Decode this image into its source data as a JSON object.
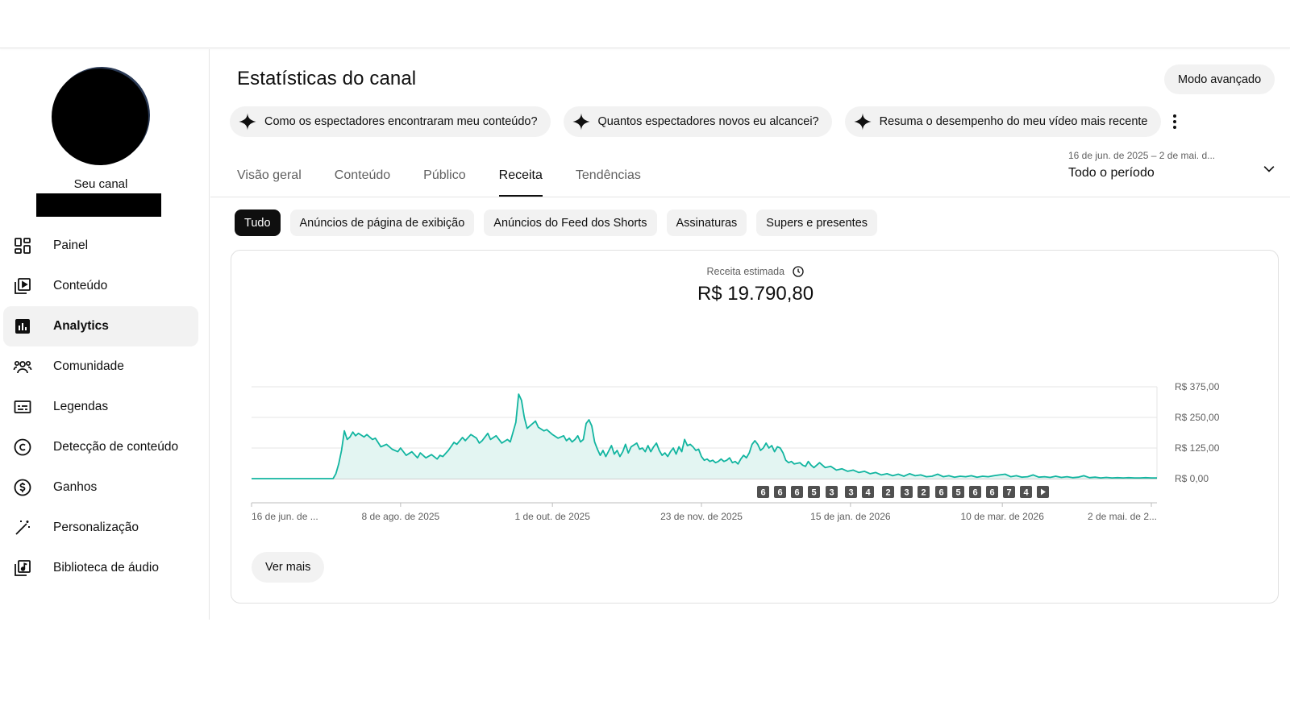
{
  "sidebar": {
    "channel_label": "Seu canal",
    "items": [
      {
        "label": "Painel",
        "icon": "dashboard-icon"
      },
      {
        "label": "Conteúdo",
        "icon": "content-icon"
      },
      {
        "label": "Analytics",
        "icon": "analytics-icon",
        "active": true
      },
      {
        "label": "Comunidade",
        "icon": "community-icon"
      },
      {
        "label": "Legendas",
        "icon": "subtitles-icon"
      },
      {
        "label": "Detecção de conteúdo",
        "icon": "copyright-icon"
      },
      {
        "label": "Ganhos",
        "icon": "earnings-icon"
      },
      {
        "label": "Personalização",
        "icon": "magic-wand-icon"
      },
      {
        "label": "Biblioteca de áudio",
        "icon": "audio-library-icon"
      }
    ]
  },
  "header": {
    "title": "Estatísticas do canal",
    "advanced_mode": "Modo avançado"
  },
  "suggestions": [
    "Como os espectadores encontraram meu conteúdo?",
    "Quantos espectadores novos eu alcancei?",
    "Resuma o desempenho do meu vídeo mais recente"
  ],
  "tabs": [
    "Visão geral",
    "Conteúdo",
    "Público",
    "Receita",
    "Tendências"
  ],
  "active_tab": "Receita",
  "date_range": {
    "range": "16 de jun. de 2025 – 2 de mai. d...",
    "period": "Todo o período"
  },
  "filters": [
    "Tudo",
    "Anúncios de página de exibição",
    "Anúncios do Feed dos Shorts",
    "Assinaturas",
    "Supers e presentes"
  ],
  "active_filter": "Tudo",
  "metric": {
    "label": "Receita estimada",
    "value": "R$ 19.790,80"
  },
  "see_more": "Ver mais",
  "colors": {
    "accent": "#12b5a0",
    "fill": "#e3f5f2",
    "active_chip": "#0f0f0f",
    "chip_bg": "#f2f2f2"
  },
  "chart_data": {
    "type": "area",
    "ylabel": "",
    "ylim": [
      0,
      375
    ],
    "y_ticks": [
      "R$ 375,00",
      "R$ 250,00",
      "R$ 125,00",
      "R$ 0,00"
    ],
    "y_tick_values": [
      375,
      250,
      125,
      0
    ],
    "x_tick_labels": [
      "16 de jun. de ...",
      "8 de ago. de 2025",
      "1 de out. de 2025",
      "23 de nov. de 2025",
      "15 de jan. de 2026",
      "10 de mar. de 2026",
      "2 de mai. de 2..."
    ],
    "x_tick_days": [
      0,
      53,
      107,
      160,
      213,
      267,
      320
    ],
    "video_markers": [
      "6",
      "6",
      "6",
      "5",
      "3",
      "3",
      "4",
      "2",
      "3",
      "2",
      "6",
      "5",
      "6",
      "6",
      "7",
      "4"
    ],
    "series": [
      {
        "values": [
          {
            "x": 0,
            "y": 0
          },
          {
            "x": 29,
            "y": 0
          },
          {
            "x": 30,
            "y": 20
          },
          {
            "x": 31,
            "y": 60
          },
          {
            "x": 32,
            "y": 115
          },
          {
            "x": 33,
            "y": 195
          },
          {
            "x": 34,
            "y": 160
          },
          {
            "x": 35,
            "y": 170
          },
          {
            "x": 36,
            "y": 190
          },
          {
            "x": 37,
            "y": 175
          },
          {
            "x": 38,
            "y": 185
          },
          {
            "x": 40,
            "y": 170
          },
          {
            "x": 41,
            "y": 180
          },
          {
            "x": 43,
            "y": 160
          },
          {
            "x": 44,
            "y": 165
          },
          {
            "x": 46,
            "y": 130
          },
          {
            "x": 48,
            "y": 140
          },
          {
            "x": 50,
            "y": 120
          },
          {
            "x": 52,
            "y": 110
          },
          {
            "x": 53,
            "y": 125
          },
          {
            "x": 55,
            "y": 95
          },
          {
            "x": 57,
            "y": 110
          },
          {
            "x": 59,
            "y": 85
          },
          {
            "x": 60,
            "y": 105
          },
          {
            "x": 62,
            "y": 85
          },
          {
            "x": 64,
            "y": 98
          },
          {
            "x": 66,
            "y": 80
          },
          {
            "x": 67,
            "y": 95
          },
          {
            "x": 68,
            "y": 90
          },
          {
            "x": 70,
            "y": 115
          },
          {
            "x": 72,
            "y": 148
          },
          {
            "x": 73,
            "y": 140
          },
          {
            "x": 75,
            "y": 168
          },
          {
            "x": 76,
            "y": 155
          },
          {
            "x": 78,
            "y": 180
          },
          {
            "x": 80,
            "y": 165
          },
          {
            "x": 81,
            "y": 145
          },
          {
            "x": 82,
            "y": 155
          },
          {
            "x": 84,
            "y": 185
          },
          {
            "x": 85,
            "y": 160
          },
          {
            "x": 87,
            "y": 175
          },
          {
            "x": 89,
            "y": 145
          },
          {
            "x": 91,
            "y": 160
          },
          {
            "x": 92,
            "y": 150
          },
          {
            "x": 94,
            "y": 230
          },
          {
            "x": 95,
            "y": 345
          },
          {
            "x": 96,
            "y": 320
          },
          {
            "x": 97,
            "y": 250
          },
          {
            "x": 98,
            "y": 205
          },
          {
            "x": 99,
            "y": 215
          },
          {
            "x": 101,
            "y": 235
          },
          {
            "x": 102,
            "y": 210
          },
          {
            "x": 104,
            "y": 195
          },
          {
            "x": 105,
            "y": 200
          },
          {
            "x": 107,
            "y": 180
          },
          {
            "x": 109,
            "y": 165
          },
          {
            "x": 111,
            "y": 175
          },
          {
            "x": 112,
            "y": 155
          },
          {
            "x": 113,
            "y": 165
          },
          {
            "x": 114,
            "y": 150
          },
          {
            "x": 115,
            "y": 160
          },
          {
            "x": 116,
            "y": 175
          },
          {
            "x": 117,
            "y": 150
          },
          {
            "x": 118,
            "y": 160
          },
          {
            "x": 119,
            "y": 225
          },
          {
            "x": 120,
            "y": 240
          },
          {
            "x": 121,
            "y": 215
          },
          {
            "x": 122,
            "y": 150
          },
          {
            "x": 123,
            "y": 120
          },
          {
            "x": 124,
            "y": 95
          },
          {
            "x": 125,
            "y": 115
          },
          {
            "x": 126,
            "y": 90
          },
          {
            "x": 128,
            "y": 135
          },
          {
            "x": 129,
            "y": 100
          },
          {
            "x": 130,
            "y": 115
          },
          {
            "x": 131,
            "y": 90
          },
          {
            "x": 132,
            "y": 110
          },
          {
            "x": 133,
            "y": 140
          },
          {
            "x": 134,
            "y": 105
          },
          {
            "x": 135,
            "y": 130
          },
          {
            "x": 137,
            "y": 145
          },
          {
            "x": 138,
            "y": 120
          },
          {
            "x": 139,
            "y": 125
          },
          {
            "x": 140,
            "y": 110
          },
          {
            "x": 141,
            "y": 135
          },
          {
            "x": 142,
            "y": 110
          },
          {
            "x": 143,
            "y": 130
          },
          {
            "x": 144,
            "y": 145
          },
          {
            "x": 145,
            "y": 115
          },
          {
            "x": 146,
            "y": 95
          },
          {
            "x": 147,
            "y": 105
          },
          {
            "x": 148,
            "y": 90
          },
          {
            "x": 149,
            "y": 110
          },
          {
            "x": 150,
            "y": 125
          },
          {
            "x": 151,
            "y": 100
          },
          {
            "x": 152,
            "y": 130
          },
          {
            "x": 153,
            "y": 110
          },
          {
            "x": 154,
            "y": 160
          },
          {
            "x": 155,
            "y": 135
          },
          {
            "x": 156,
            "y": 140
          },
          {
            "x": 157,
            "y": 130
          },
          {
            "x": 158,
            "y": 115
          },
          {
            "x": 159,
            "y": 120
          },
          {
            "x": 160,
            "y": 90
          },
          {
            "x": 161,
            "y": 75
          },
          {
            "x": 162,
            "y": 80
          },
          {
            "x": 163,
            "y": 70
          },
          {
            "x": 164,
            "y": 75
          },
          {
            "x": 165,
            "y": 65
          },
          {
            "x": 166,
            "y": 70
          },
          {
            "x": 167,
            "y": 80
          },
          {
            "x": 168,
            "y": 70
          },
          {
            "x": 169,
            "y": 75
          },
          {
            "x": 170,
            "y": 85
          },
          {
            "x": 171,
            "y": 65
          },
          {
            "x": 172,
            "y": 70
          },
          {
            "x": 173,
            "y": 60
          },
          {
            "x": 174,
            "y": 80
          },
          {
            "x": 175,
            "y": 95
          },
          {
            "x": 176,
            "y": 85
          },
          {
            "x": 177,
            "y": 105
          },
          {
            "x": 178,
            "y": 140
          },
          {
            "x": 179,
            "y": 155
          },
          {
            "x": 180,
            "y": 140
          },
          {
            "x": 181,
            "y": 115
          },
          {
            "x": 182,
            "y": 125
          },
          {
            "x": 183,
            "y": 145
          },
          {
            "x": 184,
            "y": 125
          },
          {
            "x": 185,
            "y": 135
          },
          {
            "x": 186,
            "y": 110
          },
          {
            "x": 187,
            "y": 130
          },
          {
            "x": 188,
            "y": 125
          },
          {
            "x": 189,
            "y": 105
          },
          {
            "x": 190,
            "y": 75
          },
          {
            "x": 191,
            "y": 65
          },
          {
            "x": 192,
            "y": 70
          },
          {
            "x": 193,
            "y": 60
          },
          {
            "x": 195,
            "y": 65
          },
          {
            "x": 196,
            "y": 55
          },
          {
            "x": 197,
            "y": 50
          },
          {
            "x": 198,
            "y": 70
          },
          {
            "x": 199,
            "y": 55
          },
          {
            "x": 200,
            "y": 45
          },
          {
            "x": 202,
            "y": 65
          },
          {
            "x": 204,
            "y": 45
          },
          {
            "x": 206,
            "y": 50
          },
          {
            "x": 208,
            "y": 35
          },
          {
            "x": 210,
            "y": 40
          },
          {
            "x": 212,
            "y": 30
          },
          {
            "x": 214,
            "y": 35
          },
          {
            "x": 216,
            "y": 25
          },
          {
            "x": 218,
            "y": 30
          },
          {
            "x": 220,
            "y": 20
          },
          {
            "x": 222,
            "y": 25
          },
          {
            "x": 224,
            "y": 15
          },
          {
            "x": 226,
            "y": 20
          },
          {
            "x": 228,
            "y": 12
          },
          {
            "x": 230,
            "y": 18
          },
          {
            "x": 232,
            "y": 10
          },
          {
            "x": 234,
            "y": 20
          },
          {
            "x": 236,
            "y": 12
          },
          {
            "x": 238,
            "y": 15
          },
          {
            "x": 240,
            "y": 8
          },
          {
            "x": 242,
            "y": 10
          },
          {
            "x": 244,
            "y": 18
          },
          {
            "x": 246,
            "y": 8
          },
          {
            "x": 248,
            "y": 12
          },
          {
            "x": 250,
            "y": 6
          },
          {
            "x": 252,
            "y": 10
          },
          {
            "x": 254,
            "y": 8
          },
          {
            "x": 256,
            "y": 12
          },
          {
            "x": 258,
            "y": 6
          },
          {
            "x": 260,
            "y": 10
          },
          {
            "x": 262,
            "y": 8
          },
          {
            "x": 264,
            "y": 12
          },
          {
            "x": 266,
            "y": 15
          },
          {
            "x": 268,
            "y": 18
          },
          {
            "x": 270,
            "y": 8
          },
          {
            "x": 272,
            "y": 12
          },
          {
            "x": 274,
            "y": 6
          },
          {
            "x": 276,
            "y": 8
          },
          {
            "x": 278,
            "y": 15
          },
          {
            "x": 280,
            "y": 6
          },
          {
            "x": 282,
            "y": 8
          },
          {
            "x": 284,
            "y": 5
          },
          {
            "x": 286,
            "y": 10
          },
          {
            "x": 288,
            "y": 5
          },
          {
            "x": 290,
            "y": 8
          },
          {
            "x": 292,
            "y": 4
          },
          {
            "x": 294,
            "y": 6
          },
          {
            "x": 296,
            "y": 12
          },
          {
            "x": 298,
            "y": 4
          },
          {
            "x": 300,
            "y": 6
          },
          {
            "x": 302,
            "y": 3
          },
          {
            "x": 304,
            "y": 5
          },
          {
            "x": 306,
            "y": 3
          },
          {
            "x": 308,
            "y": 4
          },
          {
            "x": 310,
            "y": 3
          },
          {
            "x": 312,
            "y": 4
          },
          {
            "x": 314,
            "y": 3
          },
          {
            "x": 316,
            "y": 3
          },
          {
            "x": 318,
            "y": 4
          },
          {
            "x": 320,
            "y": 3
          },
          {
            "x": 322,
            "y": 3
          }
        ]
      }
    ]
  }
}
